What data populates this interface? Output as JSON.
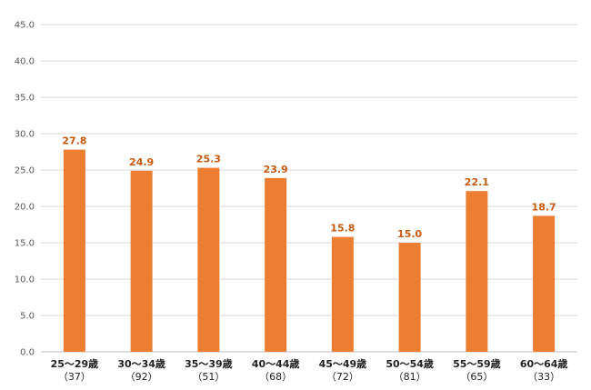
{
  "chart_data": {
    "type": "bar",
    "categories": [
      "25～29歳",
      "30～34歳",
      "35～39歳",
      "40～44歳",
      "45～49歳",
      "50～54歳",
      "55～59歳",
      "60～64歳"
    ],
    "sample_sizes": [
      "（37）",
      "（92）",
      "（51）",
      "（68）",
      "（72）",
      "（81）",
      "（65）",
      "（33）"
    ],
    "values": [
      27.8,
      24.9,
      25.3,
      23.9,
      15.8,
      15.0,
      22.1,
      18.7
    ],
    "value_labels": [
      "27.8",
      "24.9",
      "25.3",
      "23.9",
      "15.8",
      "15.0",
      "22.1",
      "18.7"
    ],
    "y_ticks": [
      "0.0",
      "5.0",
      "10.0",
      "15.0",
      "20.0",
      "25.0",
      "30.0",
      "35.0",
      "40.0",
      "45.0"
    ],
    "ylim": [
      0,
      45
    ],
    "ytick_step": 5,
    "grid": true,
    "legend": "none",
    "title": "",
    "xlabel": "",
    "ylabel": "",
    "colors": {
      "bar": "#ED7D31",
      "data_label": "#C55A11",
      "grid": "#D9D9D9",
      "axis": "#BFBFBF"
    }
  }
}
